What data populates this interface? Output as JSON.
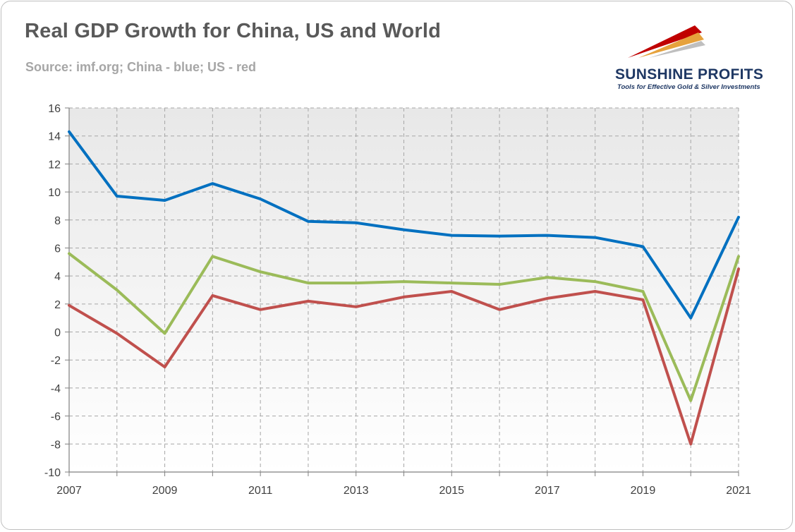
{
  "title": "Real GDP Growth for China, US and World",
  "subtitle": "Source: imf.org; China - blue; US - red",
  "logo": {
    "name": "SUNSHINE PROFITS",
    "tagline": "Tools for Effective Gold & Silver Investments"
  },
  "colors": {
    "china": "#0070c0",
    "us": "#c0504d",
    "world": "#9bbb59",
    "plot_bg_top": "#e8e8e8",
    "plot_bg_bottom": "#ffffff",
    "grid": "#a6a6a6"
  },
  "chart_data": {
    "type": "line",
    "title": "Real GDP Growth for China, US and World",
    "subtitle": "Source: imf.org; China - blue; US - red",
    "x": [
      2007,
      2008,
      2009,
      2010,
      2011,
      2012,
      2013,
      2014,
      2015,
      2016,
      2017,
      2018,
      2019,
      2020,
      2021
    ],
    "x_tick_labels": [
      "2007",
      "2009",
      "2011",
      "2013",
      "2015",
      "2017",
      "2019",
      "2021"
    ],
    "y_tick_labels": [
      "16",
      "14",
      "12",
      "10",
      "8",
      "6",
      "4",
      "2",
      "0",
      "-2",
      "-4",
      "-6",
      "-8",
      "-10"
    ],
    "ylim": [
      -10,
      16
    ],
    "xlim": [
      2007,
      2021
    ],
    "grid": true,
    "series": [
      {
        "key": "china",
        "values": [
          14.3,
          9.7,
          9.4,
          10.6,
          9.5,
          7.9,
          7.8,
          7.3,
          6.9,
          6.85,
          6.9,
          6.75,
          6.1,
          1.0,
          8.2
        ]
      },
      {
        "key": "world",
        "values": [
          5.6,
          3.0,
          -0.1,
          5.4,
          4.3,
          3.5,
          3.5,
          3.6,
          3.5,
          3.4,
          3.9,
          3.6,
          2.9,
          -4.9,
          5.4
        ]
      },
      {
        "key": "us",
        "values": [
          1.9,
          -0.1,
          -2.5,
          2.6,
          1.6,
          2.2,
          1.8,
          2.5,
          2.9,
          1.6,
          2.4,
          2.9,
          2.3,
          -8.0,
          4.5
        ]
      }
    ]
  }
}
